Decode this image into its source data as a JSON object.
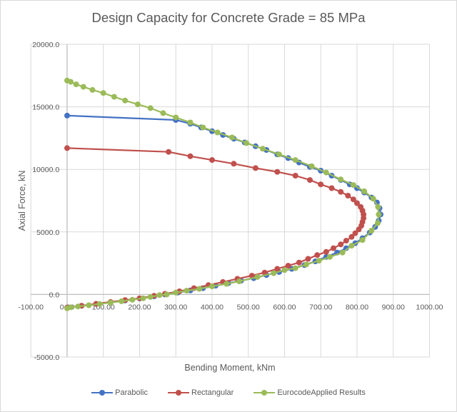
{
  "chart_data": {
    "type": "scatter",
    "title": "Design Capacity for Concrete Grade = 85 MPa",
    "xlabel": "Bending Moment, kNm",
    "ylabel": "Axial Force, kN",
    "xlim": [
      -100,
      1000
    ],
    "ylim": [
      -5000,
      20000
    ],
    "x_ticks": [
      -100,
      0,
      100,
      200,
      300,
      400,
      500,
      600,
      700,
      800,
      900,
      1000
    ],
    "x_tick_labels": [
      "-100.00",
      "0.00",
      "100.00",
      "200.00",
      "300.00",
      "400.00",
      "500.00",
      "600.00",
      "700.00",
      "800.00",
      "900.00",
      "1000.00"
    ],
    "y_ticks": [
      20000,
      15000,
      10000,
      5000,
      0,
      -5000
    ],
    "y_tick_labels": [
      "20000.0",
      "15000.0",
      "10000.0",
      "5000.0",
      "0.0",
      "-5000.0"
    ],
    "grid": true,
    "legend": "bottom",
    "series": [
      {
        "name": "Parabolic",
        "color": "#4472c4",
        "points": [
          [
            0,
            14300
          ],
          [
            300,
            13950
          ],
          [
            340,
            13650
          ],
          [
            370,
            13350
          ],
          [
            400,
            13050
          ],
          [
            430,
            12750
          ],
          [
            460,
            12450
          ],
          [
            490,
            12150
          ],
          [
            520,
            11850
          ],
          [
            550,
            11550
          ],
          [
            580,
            11200
          ],
          [
            610,
            10900
          ],
          [
            640,
            10550
          ],
          [
            670,
            10200
          ],
          [
            700,
            9900
          ],
          [
            730,
            9500
          ],
          [
            755,
            9150
          ],
          [
            780,
            8800
          ],
          [
            800,
            8500
          ],
          [
            820,
            8150
          ],
          [
            840,
            7750
          ],
          [
            855,
            7350
          ],
          [
            862,
            6900
          ],
          [
            865,
            6400
          ],
          [
            860,
            5900
          ],
          [
            850,
            5400
          ],
          [
            835,
            4950
          ],
          [
            815,
            4500
          ],
          [
            795,
            4100
          ],
          [
            770,
            3700
          ],
          [
            745,
            3350
          ],
          [
            715,
            3000
          ],
          [
            685,
            2650
          ],
          [
            655,
            2350
          ],
          [
            620,
            2050
          ],
          [
            585,
            1800
          ],
          [
            550,
            1550
          ],
          [
            515,
            1300
          ],
          [
            480,
            1100
          ],
          [
            445,
            900
          ],
          [
            410,
            700
          ],
          [
            375,
            500
          ],
          [
            340,
            320
          ],
          [
            305,
            150
          ],
          [
            270,
            0
          ],
          [
            240,
            -150
          ],
          [
            200,
            -320
          ],
          [
            160,
            -480
          ],
          [
            120,
            -620
          ],
          [
            80,
            -760
          ],
          [
            40,
            -900
          ],
          [
            0,
            -1050
          ]
        ]
      },
      {
        "name": "Rectangular",
        "color": "#c0504d",
        "points": [
          [
            0,
            11700
          ],
          [
            280,
            11400
          ],
          [
            340,
            11050
          ],
          [
            400,
            10750
          ],
          [
            460,
            10450
          ],
          [
            520,
            10100
          ],
          [
            580,
            9800
          ],
          [
            630,
            9500
          ],
          [
            670,
            9150
          ],
          [
            700,
            8800
          ],
          [
            730,
            8500
          ],
          [
            755,
            8200
          ],
          [
            775,
            7900
          ],
          [
            790,
            7600
          ],
          [
            800,
            7300
          ],
          [
            810,
            7000
          ],
          [
            815,
            6700
          ],
          [
            818,
            6400
          ],
          [
            818,
            6100
          ],
          [
            815,
            5800
          ],
          [
            812,
            5500
          ],
          [
            805,
            5200
          ],
          [
            795,
            4900
          ],
          [
            785,
            4600
          ],
          [
            770,
            4300
          ],
          [
            755,
            4000
          ],
          [
            735,
            3700
          ],
          [
            715,
            3400
          ],
          [
            690,
            3150
          ],
          [
            665,
            2850
          ],
          [
            640,
            2550
          ],
          [
            610,
            2300
          ],
          [
            580,
            2050
          ],
          [
            545,
            1750
          ],
          [
            510,
            1500
          ],
          [
            470,
            1250
          ],
          [
            430,
            1000
          ],
          [
            390,
            750
          ],
          [
            350,
            500
          ],
          [
            310,
            250
          ],
          [
            270,
            50
          ],
          [
            240,
            -100
          ],
          [
            200,
            -300
          ],
          [
            160,
            -450
          ],
          [
            120,
            -600
          ],
          [
            80,
            -750
          ],
          [
            40,
            -900
          ],
          [
            0,
            -1050
          ]
        ]
      },
      {
        "name": "EurocodeApplied Results",
        "color": "#9bbb59",
        "points": [
          [
            0,
            17100
          ],
          [
            10,
            17000
          ],
          [
            25,
            16800
          ],
          [
            45,
            16600
          ],
          [
            70,
            16350
          ],
          [
            100,
            16100
          ],
          [
            130,
            15800
          ],
          [
            160,
            15500
          ],
          [
            195,
            15200
          ],
          [
            230,
            14900
          ],
          [
            265,
            14500
          ],
          [
            300,
            14150
          ],
          [
            340,
            13750
          ],
          [
            375,
            13350
          ],
          [
            415,
            12950
          ],
          [
            455,
            12550
          ],
          [
            495,
            12100
          ],
          [
            540,
            11650
          ],
          [
            585,
            11200
          ],
          [
            630,
            10750
          ],
          [
            675,
            10250
          ],
          [
            715,
            9750
          ],
          [
            755,
            9200
          ],
          [
            790,
            8750
          ],
          [
            820,
            8250
          ],
          [
            845,
            7650
          ],
          [
            858,
            7000
          ],
          [
            860,
            6400
          ],
          [
            857,
            5700
          ],
          [
            840,
            5100
          ],
          [
            815,
            4350
          ],
          [
            785,
            3900
          ],
          [
            760,
            3350
          ],
          [
            725,
            3000
          ],
          [
            695,
            2700
          ],
          [
            660,
            2400
          ],
          [
            630,
            2100
          ],
          [
            600,
            1950
          ],
          [
            570,
            1700
          ],
          [
            525,
            1400
          ],
          [
            475,
            1050
          ],
          [
            440,
            850
          ],
          [
            400,
            650
          ],
          [
            365,
            450
          ],
          [
            330,
            300
          ],
          [
            300,
            150
          ],
          [
            275,
            0
          ],
          [
            255,
            -50
          ],
          [
            230,
            -200
          ],
          [
            210,
            -300
          ],
          [
            180,
            -420
          ],
          [
            150,
            -540
          ],
          [
            120,
            -650
          ],
          [
            90,
            -760
          ],
          [
            60,
            -860
          ],
          [
            30,
            -960
          ],
          [
            10,
            -1030
          ],
          [
            0,
            -1100
          ]
        ]
      }
    ]
  }
}
